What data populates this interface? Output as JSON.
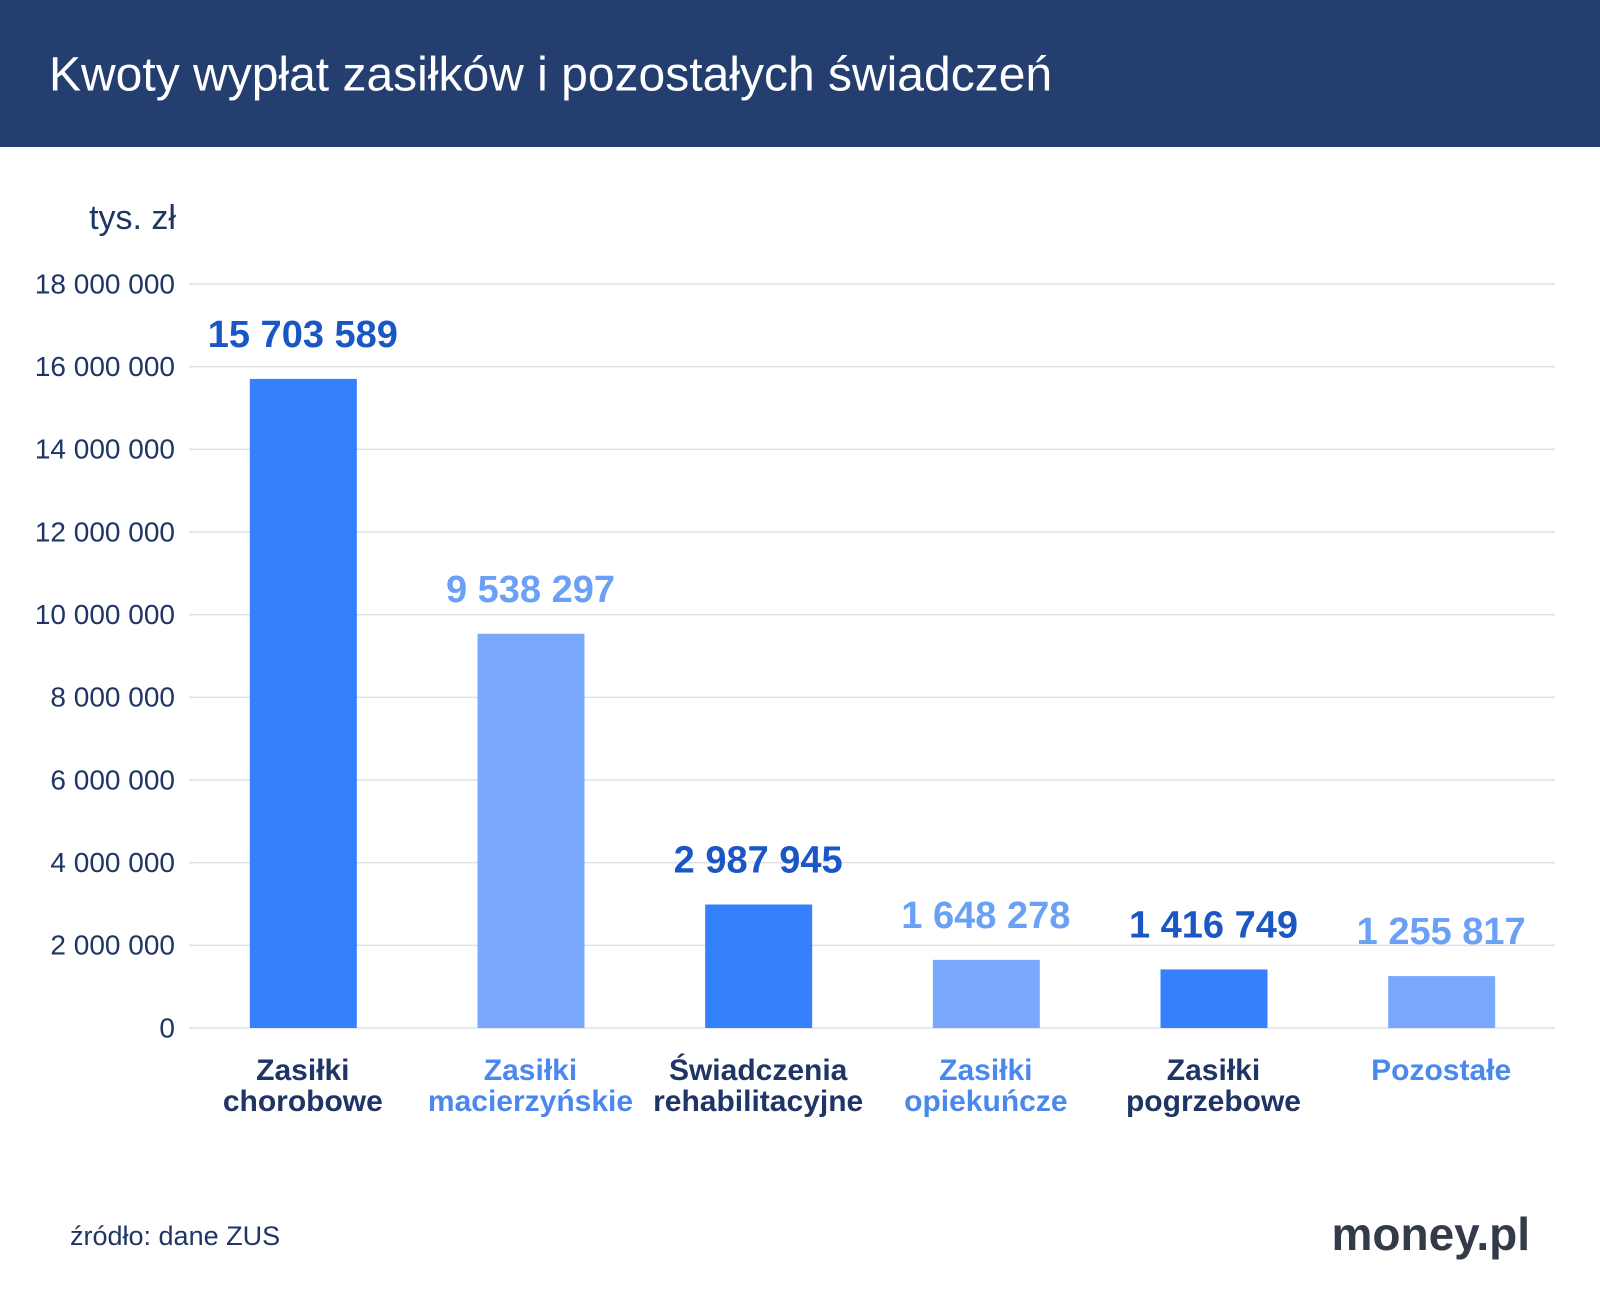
{
  "chart_data": {
    "type": "bar",
    "title": "Kwoty wypłat zasiłków i pozostałych świadczeń",
    "ylabel": "tys. zł",
    "categories": [
      [
        "Zasiłki",
        "chorobowe"
      ],
      [
        "Zasiłki",
        "macierzyńskie"
      ],
      [
        "Świadczenia",
        "rehabilitacyjne"
      ],
      [
        "Zasiłki",
        "opiekuńcze"
      ],
      [
        "Zasiłki",
        "pogrzebowe"
      ],
      [
        "Pozostałe"
      ]
    ],
    "values": [
      15703589,
      9538297,
      2987945,
      1648278,
      1416749,
      1255817
    ],
    "value_labels": [
      "15 703 589",
      "9 538 297",
      "2 987 945",
      "1 648 278",
      "1 416 749",
      "1 255 817"
    ],
    "colors": [
      "#3580fc",
      "#7aa8fc",
      "#3580fc",
      "#7aa8fc",
      "#3580fc",
      "#7aa8fc"
    ],
    "value_label_colors": [
      "#1a56c4",
      "#6aa0f5",
      "#1a56c4",
      "#6aa0f5",
      "#1a56c4",
      "#6aa0f5"
    ],
    "category_label_colors": [
      "#1e3565",
      "#4a88ee",
      "#1e3565",
      "#4a88ee",
      "#1e3565",
      "#4a88ee"
    ],
    "ylim": [
      0,
      18000000
    ],
    "yticks": [
      0,
      {
        "value": 2000000,
        "label": "2 000 000"
      },
      {
        "value": 4000000,
        "label": "4 000 000"
      },
      {
        "value": 6000000,
        "label": "6 000 000"
      },
      {
        "value": 8000000,
        "label": "8 000 000"
      },
      {
        "value": 10000000,
        "label": "10 000 000"
      },
      {
        "value": 12000000,
        "label": "12 000 000"
      },
      {
        "value": 14000000,
        "label": "14 000 000"
      },
      {
        "value": 16000000,
        "label": "16 000 000"
      },
      {
        "value": 18000000,
        "label": "18 000 000"
      }
    ],
    "grid": true,
    "source": "źródło: dane ZUS",
    "logo": "money.pl"
  }
}
